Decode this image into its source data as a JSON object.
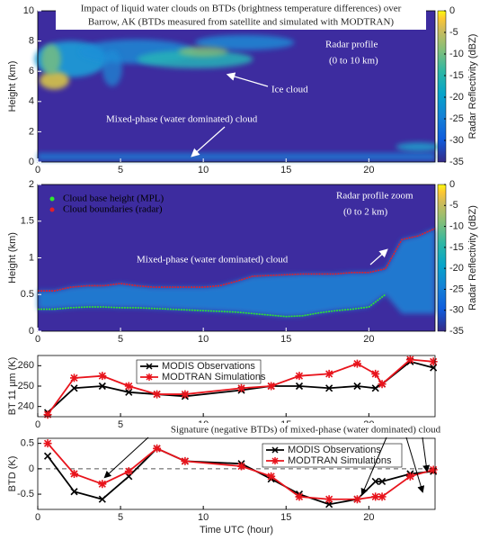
{
  "chart_data": [
    {
      "type": "radar",
      "title": [
        "Impact of liquid water clouds on BTDs (brightness temperature differences) over",
        "Barrow, AK (BTDs measured from satellite and simulated with MODTRAN)"
      ],
      "annotations": [
        "Radar profile",
        "(0 to 10 km)",
        "Ice cloud",
        "Mixed-phase (water dominated) cloud"
      ],
      "ylabel": "Height (km)",
      "xlim": [
        0,
        24
      ],
      "xticks": [
        0,
        5,
        10,
        15,
        20
      ],
      "ylim": [
        0,
        10
      ],
      "yticks": [
        0,
        2,
        4,
        6,
        8,
        10
      ],
      "colorbar": {
        "label": "Radar Reflectivity (dBZ)",
        "clim": [
          -35,
          0
        ],
        "ticks": [
          0,
          -5,
          -10,
          -15,
          -20,
          -25,
          -30,
          -35
        ]
      }
    },
    {
      "type": "radar",
      "annotations": [
        "Radar profile zoom",
        "(0 to 2 km)",
        "Mixed-phase (water dominated) cloud"
      ],
      "ylabel": "Height (km)",
      "xlim": [
        0,
        24
      ],
      "xticks": [
        0,
        5,
        10,
        15,
        20
      ],
      "ylim": [
        0,
        2
      ],
      "yticks": [
        0,
        0.5,
        1,
        1.5,
        2
      ],
      "x": [
        0,
        1,
        2,
        3,
        4,
        5,
        6,
        7,
        8,
        9,
        10,
        11,
        12,
        13,
        14,
        15,
        16,
        17,
        18,
        19,
        20,
        21,
        22,
        23,
        24
      ],
      "series": [
        {
          "name": "Cloud base height (MPL)",
          "color": "#2ee82e",
          "values": [
            0.3,
            0.3,
            0.32,
            0.33,
            0.33,
            0.32,
            0.32,
            0.31,
            0.3,
            0.29,
            0.28,
            0.27,
            0.26,
            0.24,
            0.22,
            0.2,
            0.21,
            0.25,
            0.28,
            0.3,
            0.33,
            0.5,
            null,
            null,
            null
          ]
        },
        {
          "name": "Cloud boundaries (radar)",
          "color": "#e0202a",
          "values": [
            0.55,
            0.55,
            0.6,
            0.62,
            0.62,
            0.65,
            0.62,
            0.6,
            0.6,
            0.6,
            0.6,
            0.62,
            0.68,
            0.75,
            0.76,
            0.77,
            0.78,
            0.78,
            0.78,
            0.8,
            0.8,
            0.85,
            1.25,
            1.3,
            1.4
          ]
        }
      ],
      "colorbar": {
        "label": "Radar Reflectivity (dBZ)",
        "clim": [
          -35,
          0
        ],
        "ticks": [
          0,
          -5,
          -10,
          -15,
          -20,
          -25,
          -30,
          -35
        ]
      }
    },
    {
      "type": "line",
      "ylabel": "BT 11 µm (K)",
      "xlim": [
        0,
        24
      ],
      "xticks": [
        0,
        5,
        10,
        15,
        20
      ],
      "ylim": [
        235,
        265
      ],
      "yticks": [
        240,
        250,
        260
      ],
      "x": [
        0.6,
        2.2,
        3.9,
        5.5,
        7.2,
        8.9,
        12.3,
        14.1,
        15.8,
        17.6,
        19.3,
        20.4,
        20.8,
        22.5,
        23.9
      ],
      "series": [
        {
          "name": "MODIS Observations",
          "color": "#000000",
          "marker": "x",
          "values": [
            237,
            249,
            250,
            247,
            246,
            245,
            248,
            250,
            250,
            249,
            250,
            249,
            251,
            262,
            259
          ]
        },
        {
          "name": "MODTRAN Simulations",
          "color": "#e8141c",
          "marker": "star",
          "values": [
            236,
            254,
            255,
            250,
            246,
            246,
            249,
            250,
            255,
            256,
            261,
            256,
            251,
            263,
            262
          ]
        }
      ]
    },
    {
      "type": "line",
      "annotation": "Signature (negative BTDs) of mixed-phase (water dominated) cloud",
      "ylabel": "BTD (K)",
      "xlabel": "Time UTC (hour)",
      "xlim": [
        0,
        24
      ],
      "xticks": [
        0,
        5,
        10,
        15,
        20
      ],
      "ylim": [
        -0.8,
        0.6
      ],
      "yticks": [
        -0.5,
        0,
        0.5
      ],
      "zero_line": true,
      "x": [
        0.6,
        2.2,
        3.9,
        5.5,
        7.2,
        8.9,
        12.3,
        14.1,
        15.8,
        17.6,
        19.3,
        20.4,
        20.8,
        22.5,
        23.9
      ],
      "series": [
        {
          "name": "MODIS Observations",
          "color": "#000000",
          "marker": "x",
          "values": [
            0.25,
            -0.45,
            -0.6,
            -0.15,
            0.4,
            0.15,
            0.1,
            -0.2,
            -0.5,
            -0.7,
            -0.6,
            -0.25,
            -0.25,
            -0.1,
            -0.05
          ]
        },
        {
          "name": "MODTRAN Simulations",
          "color": "#e8141c",
          "marker": "star",
          "values": [
            0.5,
            -0.1,
            -0.3,
            -0.05,
            0.4,
            0.15,
            0.05,
            -0.15,
            -0.55,
            -0.6,
            -0.6,
            -0.55,
            -0.55,
            -0.15,
            -0.02
          ]
        }
      ]
    }
  ]
}
